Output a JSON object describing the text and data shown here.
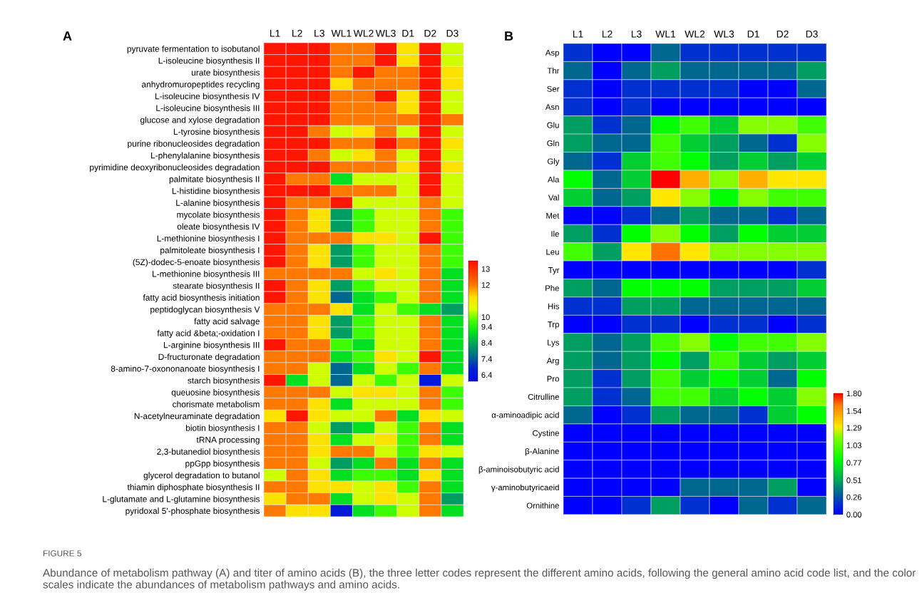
{
  "chart_data": [
    {
      "type": "heatmap",
      "title": "A",
      "categories": [
        "L1",
        "L2",
        "L3",
        "WL1",
        "WL2",
        "WL3",
        "D1",
        "D2",
        "D3"
      ],
      "y_categories": [
        "pyruvate fermentation to isobutanol",
        "L-isoleucine biosynthesis II",
        "urate biosynthesis",
        "anhydromuropeptides recycling",
        "L-isoleucine biosynthesis IV",
        "L-isoleucine biosynthesis III",
        "glucose and xylose degradation",
        "L-tyrosine biosynthesis",
        "purine ribonucleosides degradation",
        "L-phenylalanine biosynthesis",
        "pyrimidine deoxyribonucleosides degradation",
        "palmitate biosynthesis II",
        "L-histidine biosynthesis",
        "L-alanine biosynthesis",
        "mycolate biosynthesis",
        "oleate biosynthesis IV",
        "L-methionine biosynthesis I",
        "palmitoleate biosynthesis I",
        "(5Z)-dodec-5-enoate biosynthesis",
        "L-methionine biosynthesis III",
        "stearate biosynthesis II",
        "fatty acid biosynthesis initiation",
        "peptidoglycan biosynthesis V",
        "fatty acid salvage",
        "fatty acid &beta;-oxidation I",
        "L-arginine biosynthesis III",
        "D-fructuronate degradation",
        "8-amino-7-oxononanoate biosynthesis I",
        "starch biosynthesis",
        "queuosine biosynthesis",
        "chorismate metabolism",
        "N-acetylneuraminate degradation",
        "biotin biosynthesis I",
        "tRNA processing",
        "2,3-butanediol biosynthesis",
        "ppGpp biosynthesis",
        "glycerol degradation to butanol",
        "thiamin diphosphate biosynthesis II",
        "L-glutamate and L-glutamine biosynthesis",
        "pyridoxal 5'-phosphate biosynthesis"
      ],
      "cells": [
        [
          13.4,
          13.4,
          13.4,
          12,
          12,
          13.4,
          11.2,
          13.4,
          10.4
        ],
        [
          13.4,
          13.4,
          13.4,
          12,
          12,
          13.4,
          11.2,
          13.4,
          10.4
        ],
        [
          13.4,
          13.4,
          13.4,
          12,
          13.4,
          12,
          12,
          13.4,
          11.2
        ],
        [
          13.4,
          13.4,
          13.4,
          11.2,
          12,
          12,
          12,
          13.4,
          11.2
        ],
        [
          13.4,
          13.4,
          13.4,
          12,
          12,
          13.4,
          11.2,
          13.4,
          10.4
        ],
        [
          13.4,
          13.4,
          13.4,
          12,
          12,
          12,
          11.2,
          13.4,
          10.4
        ],
        [
          13.4,
          13.4,
          13.4,
          12,
          12,
          12,
          12,
          13.4,
          12
        ],
        [
          13.4,
          13.4,
          12,
          10.4,
          11.2,
          12,
          10.4,
          13.4,
          10.4
        ],
        [
          13.4,
          13.4,
          13.4,
          12,
          12,
          13.4,
          12,
          13.4,
          11.2
        ],
        [
          13.4,
          13.4,
          12,
          10.4,
          11.2,
          12,
          10.4,
          13.4,
          10.4
        ],
        [
          13.4,
          13.4,
          13.4,
          12,
          12,
          12,
          11.2,
          13.4,
          11.2
        ],
        [
          13.4,
          12,
          12,
          9,
          10.4,
          10.4,
          10.4,
          13.4,
          10.4
        ],
        [
          13.4,
          13.4,
          13.4,
          12,
          12,
          12,
          10.4,
          13.4,
          10.4
        ],
        [
          13.4,
          12,
          12,
          13.4,
          10.4,
          10.4,
          10.4,
          12,
          10.4
        ],
        [
          13.4,
          12,
          11.2,
          8.2,
          9.7,
          10.4,
          10.4,
          12,
          9.7
        ],
        [
          13.4,
          12,
          11.2,
          8.2,
          9.7,
          10.4,
          10.4,
          12,
          9.7
        ],
        [
          13.4,
          12,
          12,
          12,
          11.2,
          11.2,
          10.4,
          13.4,
          9.7
        ],
        [
          13.4,
          12,
          11.2,
          8.2,
          9.7,
          10.4,
          10.4,
          12,
          9.7
        ],
        [
          13.4,
          12,
          11.2,
          8.2,
          9.7,
          10.4,
          10.4,
          12,
          9.7
        ],
        [
          12,
          12,
          12,
          12,
          10.4,
          11.2,
          10.4,
          12,
          9
        ],
        [
          13.4,
          12,
          11.2,
          8.2,
          9.7,
          10.4,
          10.4,
          12,
          9
        ],
        [
          13.4,
          12,
          11.2,
          7.5,
          9,
          9.7,
          10.4,
          12,
          9
        ],
        [
          12,
          12,
          12,
          11.2,
          9,
          10.4,
          9.7,
          9,
          8.2
        ],
        [
          12,
          12,
          11.2,
          8.2,
          9.7,
          10.4,
          10.4,
          12,
          9
        ],
        [
          12,
          12,
          11.2,
          8.2,
          9.7,
          10.4,
          10.4,
          12,
          9
        ],
        [
          13.4,
          12,
          12,
          9.7,
          9,
          10.4,
          10.4,
          12,
          9
        ],
        [
          12,
          12,
          12,
          9,
          9.7,
          11.2,
          10.4,
          13.4,
          9
        ],
        [
          12,
          12,
          10.4,
          7.5,
          9,
          10.4,
          9.7,
          12,
          9
        ],
        [
          13.4,
          9,
          10.4,
          7.5,
          10.4,
          9.7,
          10.4,
          6.4,
          10.4
        ],
        [
          12,
          12,
          12,
          10.4,
          11.2,
          11.2,
          10.4,
          12,
          9.7
        ],
        [
          12,
          12,
          11.2,
          9,
          10.4,
          10.4,
          10.4,
          12,
          9.7
        ],
        [
          11.2,
          13.4,
          11.2,
          10.4,
          10.4,
          12,
          9,
          11.2,
          10.4
        ],
        [
          12,
          12,
          10.4,
          8.2,
          9,
          10.4,
          9.7,
          12,
          9
        ],
        [
          12,
          12,
          11.2,
          9,
          10.4,
          11.2,
          9.7,
          12,
          9
        ],
        [
          12,
          12,
          11.2,
          12,
          12,
          10.4,
          9.7,
          11.2,
          10.4
        ],
        [
          12,
          12,
          10.4,
          8.2,
          9,
          12,
          9,
          12,
          9
        ],
        [
          10.4,
          12,
          11.2,
          9,
          9.7,
          9.7,
          9,
          11.2,
          9
        ],
        [
          12,
          12,
          11.2,
          11.2,
          10.4,
          11.2,
          9.7,
          12,
          9
        ],
        [
          11.2,
          12,
          12,
          9,
          10.4,
          11.2,
          10.4,
          12,
          8.2
        ],
        [
          12,
          11.2,
          11.2,
          6.4,
          9,
          9.7,
          10.4,
          12,
          9
        ]
      ],
      "clim": [
        6,
        13.5
      ],
      "cticks": [
        6.4,
        7.4,
        8.4,
        9.4,
        10,
        12,
        13
      ],
      "colors": [
        "#0010e0",
        "#0020d0",
        "#006890",
        "#00a060",
        "#00e020",
        "#40ff00",
        "#e0ff00",
        "#ffe000",
        "#ff7800",
        "#ff4000",
        "#ff1000"
      ],
      "annotations": [
        "FIGURE 5",
        "Abundance of metabolism pathway (A) and titer of amino acids (B), the three letter codes represent the different amino acids, following the general amino acid code list, and the color scales indicate the abundances of metabolism pathways and amino acids."
      ]
    },
    {
      "type": "heatmap",
      "title": "B",
      "categories": [
        "L1",
        "L2",
        "L3",
        "WL1",
        "WL2",
        "WL3",
        "D1",
        "D2",
        "D3"
      ],
      "y_categories": [
        "Asp",
        "Thr",
        "Ser",
        "Asn",
        "Glu",
        "Gln",
        "Gly",
        "Ala",
        "Val",
        "Met",
        "Ile",
        "Leu",
        "Tyr",
        "Phe",
        "His",
        "Trp",
        "Lys",
        "Arg",
        "Pro",
        "Citrulline",
        "α-aminoadipic acid",
        "Cystine",
        "β-Alanine",
        "β-aminoisobutyric acid",
        "γ-aminobutyricaeid",
        "Ornithine"
      ],
      "cells": [
        [
          0.16,
          0,
          0,
          0.33,
          0.16,
          0.16,
          0.16,
          0.16,
          0.16
        ],
        [
          0.33,
          0,
          0.33,
          0.49,
          0.33,
          0.33,
          0.33,
          0.33,
          0.49
        ],
        [
          0.16,
          0,
          0.16,
          0.16,
          0.16,
          0.16,
          0,
          0,
          0.33
        ],
        [
          0.16,
          0,
          0.16,
          0,
          0,
          0,
          0,
          0,
          0
        ],
        [
          0.49,
          0.16,
          0.33,
          0.82,
          0.98,
          0.65,
          1.15,
          1.15,
          0.98
        ],
        [
          0.49,
          0.33,
          0.33,
          0.98,
          0.65,
          0.49,
          0.33,
          0.16,
          1.15
        ],
        [
          0.33,
          0.16,
          0.65,
          0.98,
          0.82,
          0.49,
          0.65,
          0.49,
          0.65
        ],
        [
          0.82,
          0.33,
          0.65,
          1.8,
          1.47,
          1.15,
          1.47,
          1.31,
          1.31
        ],
        [
          0.65,
          0.33,
          0.49,
          1.31,
          1.15,
          0.82,
          1.15,
          0.98,
          0.98
        ],
        [
          0,
          0,
          0.16,
          0.33,
          0.49,
          0.33,
          0.33,
          0.16,
          0.33
        ],
        [
          0.49,
          0.16,
          0.82,
          1.15,
          0.82,
          0.49,
          0.82,
          0.65,
          0.65
        ],
        [
          0.98,
          0.49,
          1.31,
          1.64,
          1.31,
          1.15,
          1.15,
          1.15,
          1.15
        ],
        [
          0,
          0,
          0,
          0,
          0,
          0,
          0,
          0,
          0.16
        ],
        [
          0.49,
          0.33,
          0.82,
          0.82,
          0.82,
          0.49,
          0.49,
          0.49,
          0.65
        ],
        [
          0.16,
          0.16,
          0.49,
          0.49,
          0.33,
          0.33,
          0.33,
          0.33,
          0.33
        ],
        [
          0,
          0,
          0.16,
          0.16,
          0,
          0.16,
          0.16,
          0,
          0.16
        ],
        [
          0.49,
          0.33,
          0.49,
          0.98,
          1.15,
          0.82,
          0.98,
          0.98,
          1.15
        ],
        [
          0.49,
          0.33,
          0.49,
          0.82,
          0.49,
          0.98,
          0.65,
          0.49,
          0.65
        ],
        [
          0.49,
          0.16,
          0.49,
          0.98,
          0.65,
          0.82,
          0.65,
          0.33,
          0.82
        ],
        [
          0.49,
          0.16,
          0.33,
          0.98,
          0.98,
          0.65,
          0.82,
          0.65,
          1.15
        ],
        [
          0.33,
          0,
          0.16,
          0.49,
          0.33,
          0.33,
          0.16,
          0.65,
          0.82
        ],
        [
          0,
          0,
          0,
          0,
          0,
          0,
          0,
          0,
          0
        ],
        [
          0,
          0,
          0,
          0,
          0,
          0,
          0,
          0,
          0
        ],
        [
          0,
          0,
          0,
          0,
          0,
          0,
          0,
          0,
          0
        ],
        [
          0,
          0,
          0,
          0,
          0.33,
          0.33,
          0.33,
          0.49,
          0
        ],
        [
          0,
          0,
          0.16,
          0.49,
          0.16,
          0,
          0.33,
          0.16,
          0.33
        ]
      ],
      "clim": [
        0,
        1.8
      ],
      "cticks": [
        {
          "value": 0,
          "label": "0.00"
        },
        0.26,
        0.51,
        0.77,
        1.03,
        1.29,
        1.54,
        {
          "value": 1.8,
          "label": "1.80"
        }
      ],
      "colors": [
        "#0000ff",
        "#0033cc",
        "#006890",
        "#00a060",
        "#00d030",
        "#00ff00",
        "#40ff00",
        "#80ff00",
        "#ffe800",
        "#ffb000",
        "#ff7800",
        "#ff0000"
      ]
    }
  ]
}
